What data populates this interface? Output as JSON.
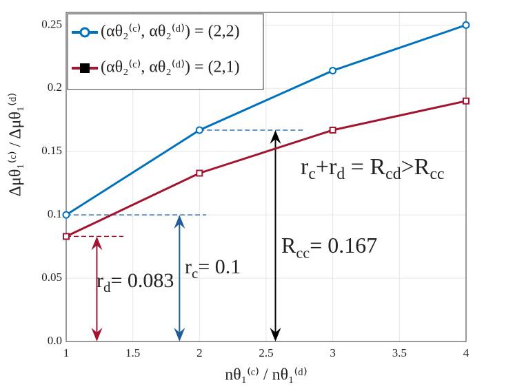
{
  "chart_data": {
    "type": "line",
    "x_label": "nθ₁⁽ᶜ⁾ / nθ₁⁽ᵈ⁾",
    "y_label": "Δμθ₁⁽ᶜ⁾ / Δμθ₁⁽ᵈ⁾",
    "x": [
      1,
      2,
      3,
      4
    ],
    "series": [
      {
        "name": "(αθ₂⁽ᶜ⁾, αθ₂⁽ᵈ⁾) = (2,2)",
        "color": "#0072bd",
        "marker": "circle",
        "values": [
          0.1,
          0.167,
          0.214,
          0.25
        ]
      },
      {
        "name": "(αθ₂⁽ᶜ⁾, αθ₂⁽ᵈ⁾) = (2,1)",
        "color": "#a2142f",
        "marker": "square",
        "values": [
          0.083,
          0.133,
          0.167,
          0.19
        ]
      }
    ],
    "xlim": [
      1,
      4
    ],
    "xticks": [
      1,
      1.5,
      2,
      2.5,
      3,
      3.5,
      4
    ],
    "ylim": [
      0,
      0.26
    ],
    "yticks": [
      {
        "value": 0,
        "label": "0.0"
      },
      0.05,
      0.1,
      0.15,
      0.2,
      0.25
    ],
    "grid": true,
    "legend": "upper left",
    "guides": [
      {
        "y": 0.083,
        "x": [
          1,
          1.43
        ],
        "color": "#a2142f"
      },
      {
        "y": 0.1,
        "x": [
          1,
          2.05
        ],
        "color": "#2e75b6"
      },
      {
        "y": 0.167,
        "x": [
          2,
          2.78
        ],
        "color": "#2e75b6"
      }
    ],
    "arrows": [
      {
        "x": 1.23,
        "y": 0.083,
        "color": "#a2142f"
      },
      {
        "x": 1.85,
        "y": 0.1,
        "color": "#1f5c99"
      },
      {
        "x": 2.57,
        "y": 0.167,
        "color": "#000000"
      }
    ],
    "annotations": [
      [
        "r",
        "d",
        "= 0.083"
      ],
      [
        "r",
        "c",
        "= 0.1"
      ],
      [
        "R",
        "cc",
        "= 0.167"
      ],
      [
        "r",
        "c",
        "+r",
        "d",
        " = R",
        "cd",
        ">R",
        "cc"
      ]
    ]
  }
}
